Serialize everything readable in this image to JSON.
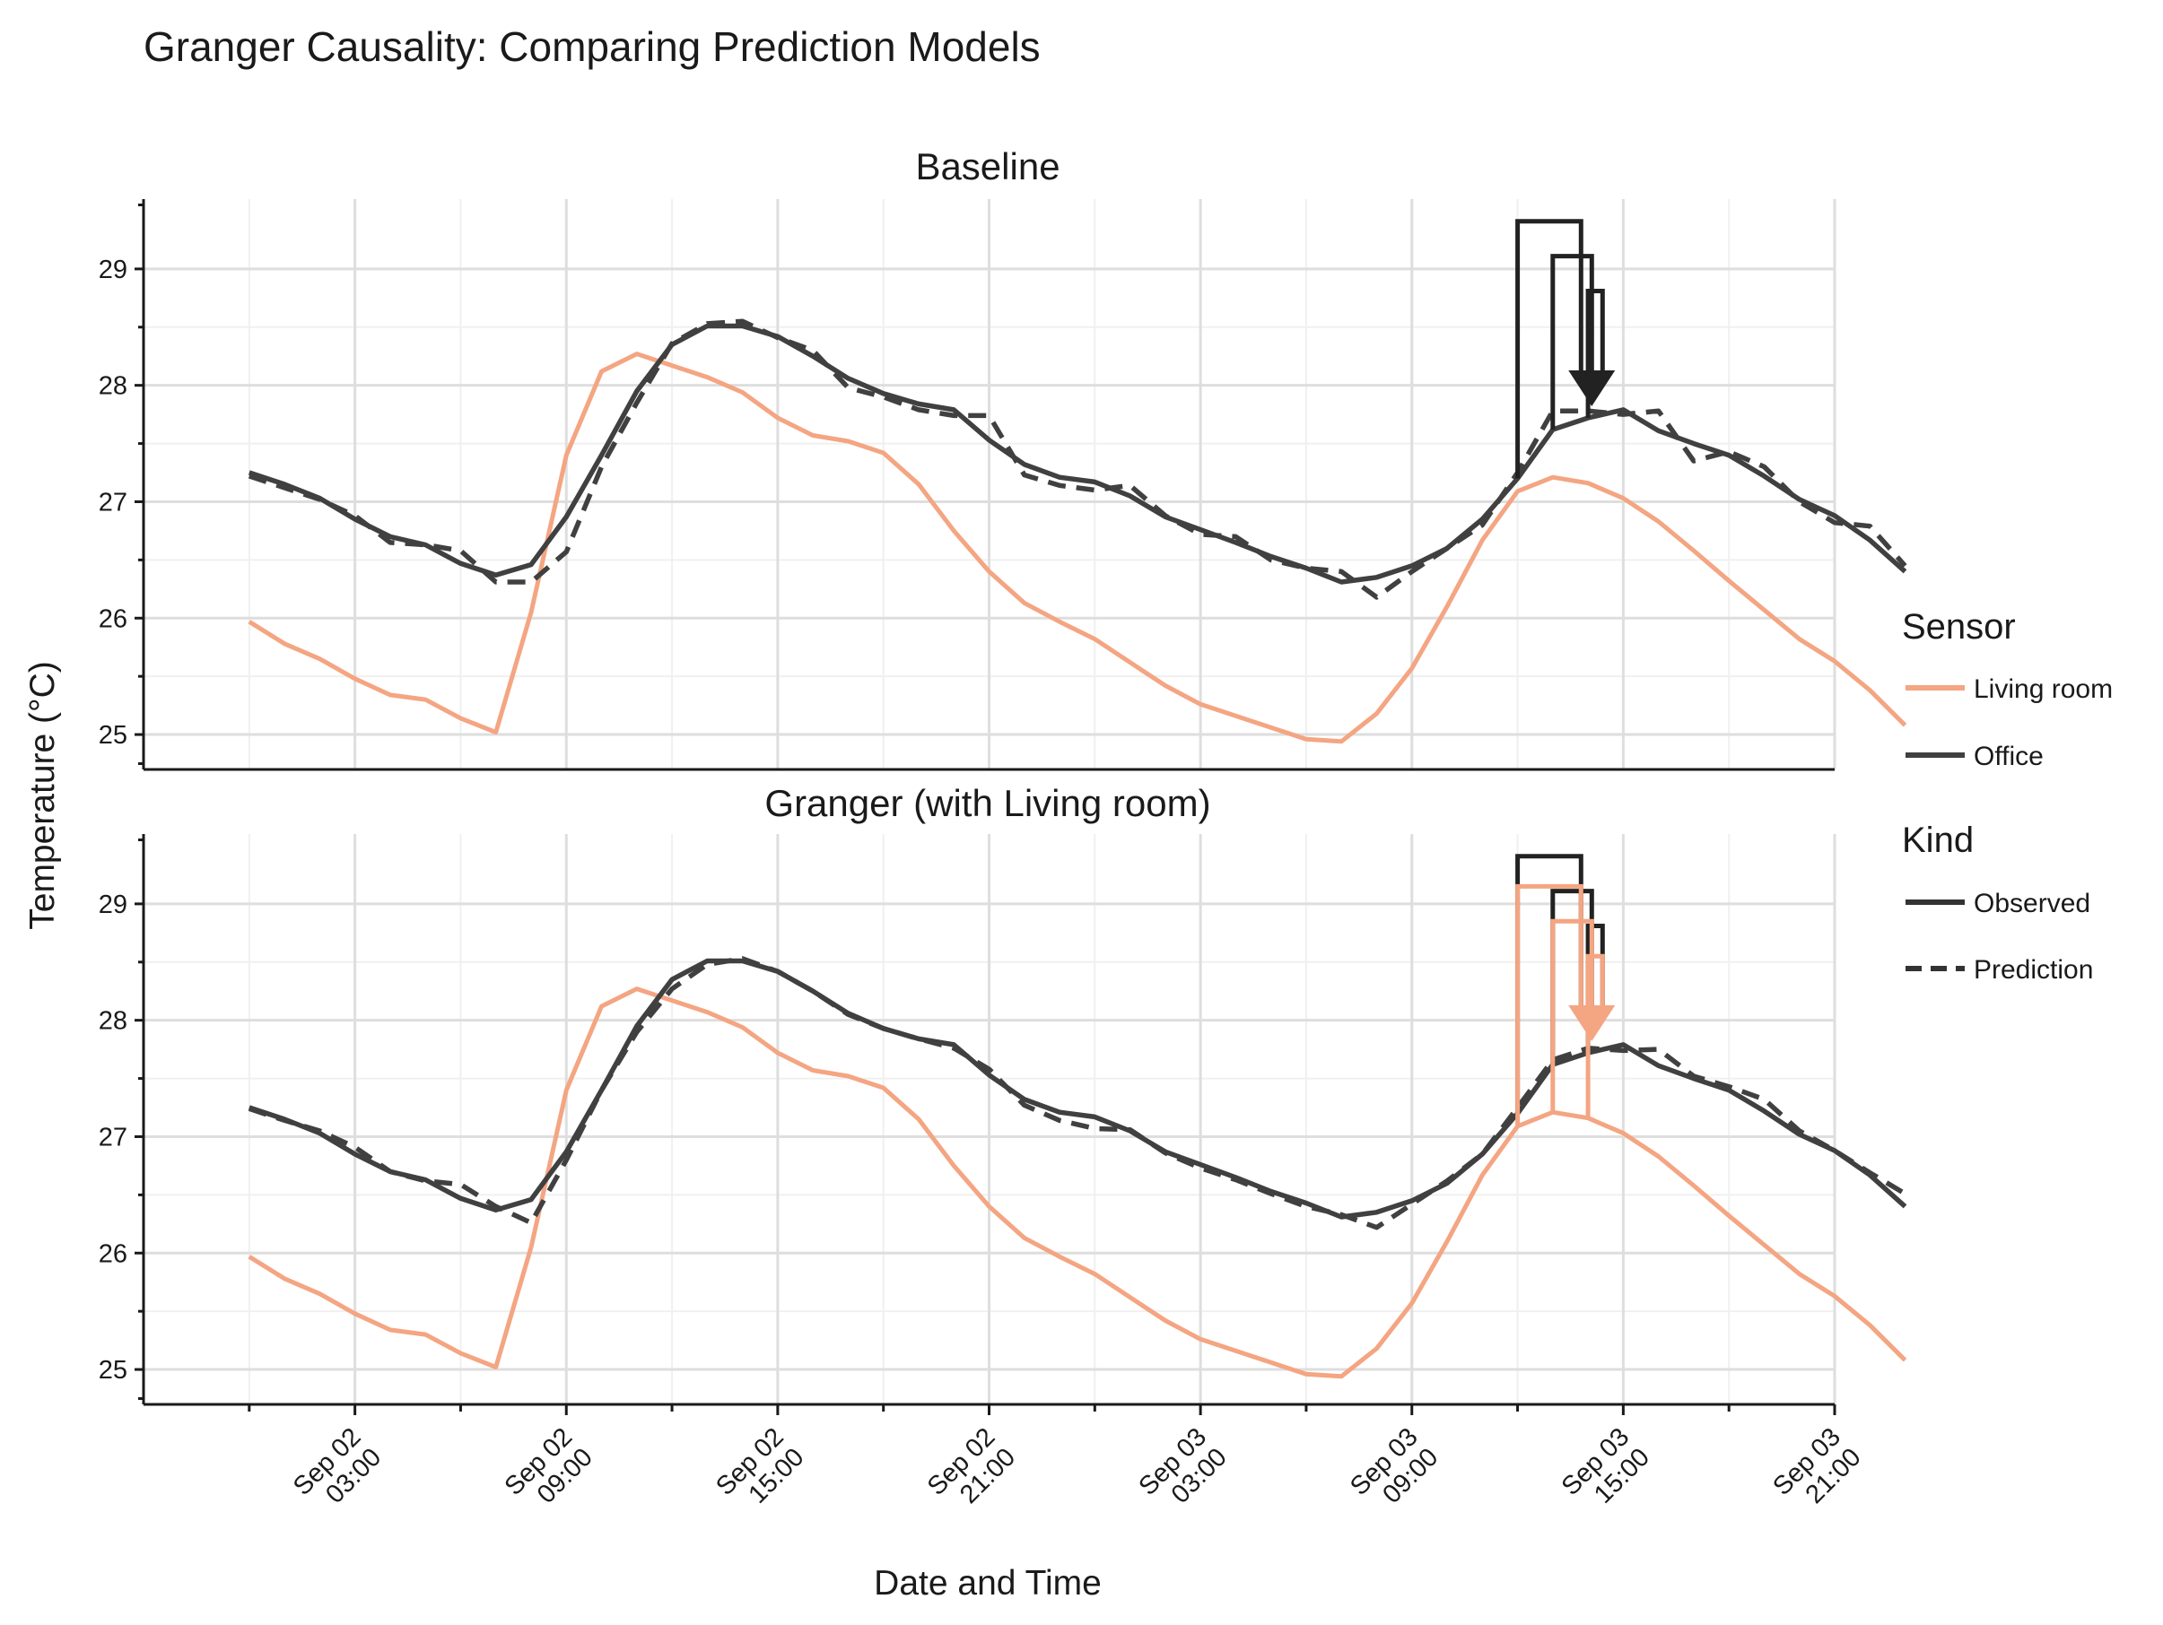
{
  "colors": {
    "living_room": "#f4a582",
    "office": "#404040",
    "observed_legend": "#333333",
    "grid_major": "#dedede",
    "grid_minor": "#f0f0f0",
    "arrow_dark": "#222222",
    "arrow_salmon": "#f4a582"
  },
  "chart_data": {
    "type": "line",
    "title": "Granger Causality: Comparing Prediction Models",
    "xlabel": "Date and Time",
    "ylabel": "Temperature (°C)",
    "x_unit": "hours since Sep 02 00:00",
    "x_range": [
      -3,
      45
    ],
    "x_ticks": [
      {
        "hour": 3,
        "line1": "Sep 02",
        "line2": "03:00"
      },
      {
        "hour": 9,
        "line1": "Sep 02",
        "line2": "09:00"
      },
      {
        "hour": 15,
        "line1": "Sep 02",
        "line2": "15:00"
      },
      {
        "hour": 21,
        "line1": "Sep 02",
        "line2": "21:00"
      },
      {
        "hour": 27,
        "line1": "Sep 03",
        "line2": "03:00"
      },
      {
        "hour": 33,
        "line1": "Sep 03",
        "line2": "09:00"
      },
      {
        "hour": 39,
        "line1": "Sep 03",
        "line2": "15:00"
      },
      {
        "hour": 45,
        "line1": "Sep 03",
        "line2": "21:00"
      }
    ],
    "y_ticks": [
      "25",
      "26",
      "27",
      "28",
      "29"
    ],
    "ylim": [
      24.7,
      29.6
    ],
    "x": [
      0,
      1,
      2,
      3,
      4,
      5,
      6,
      7,
      8,
      9,
      10,
      11,
      12,
      13,
      14,
      15,
      16,
      17,
      18,
      19,
      20,
      21,
      22,
      23,
      24,
      25,
      26,
      27,
      28,
      29,
      30,
      31,
      32,
      33,
      34,
      35,
      36,
      37,
      38,
      39,
      40,
      41,
      42,
      43,
      44,
      45,
      46,
      47
    ],
    "living_room": [
      25.97,
      25.78,
      25.65,
      25.48,
      25.34,
      25.3,
      25.14,
      25.02,
      26.05,
      27.4,
      28.12,
      28.27,
      28.17,
      28.07,
      27.94,
      27.72,
      27.57,
      27.52,
      27.42,
      27.15,
      26.75,
      26.4,
      26.13,
      25.97,
      25.82,
      25.62,
      25.42,
      25.26,
      25.16,
      25.06,
      24.96,
      24.94,
      25.18,
      25.57,
      26.1,
      26.67,
      27.09,
      27.21,
      27.16,
      27.03,
      26.83,
      26.58,
      26.32,
      26.07,
      25.82,
      25.63,
      25.38,
      25.08
    ],
    "office_observed": [
      27.25,
      27.15,
      27.03,
      26.85,
      26.7,
      26.63,
      26.47,
      26.37,
      26.46,
      26.87,
      27.4,
      27.95,
      28.35,
      28.51,
      28.51,
      28.42,
      28.25,
      28.06,
      27.93,
      27.84,
      27.79,
      27.53,
      27.32,
      27.21,
      27.17,
      27.05,
      26.87,
      26.76,
      26.65,
      26.53,
      26.43,
      26.31,
      26.35,
      26.45,
      26.6,
      26.85,
      27.2,
      27.62,
      27.72,
      27.79,
      27.61,
      27.5,
      27.4,
      27.22,
      27.02,
      26.88,
      26.67,
      26.4
    ],
    "series": [
      {
        "panel": "Baseline",
        "office_prediction": [
          27.22,
          27.12,
          27.02,
          26.88,
          26.65,
          26.63,
          26.58,
          26.31,
          26.31,
          26.57,
          27.3,
          27.85,
          28.36,
          28.53,
          28.55,
          28.41,
          28.3,
          27.98,
          27.9,
          27.79,
          27.74,
          27.74,
          27.23,
          27.14,
          27.1,
          27.14,
          26.88,
          26.72,
          26.7,
          26.5,
          26.43,
          26.4,
          26.18,
          26.4,
          26.6,
          26.8,
          27.25,
          27.78,
          27.78,
          27.75,
          27.78,
          27.35,
          27.43,
          27.3,
          27.0,
          26.82,
          26.79,
          26.45
        ],
        "arrow_sources": [],
        "arrow_target": {
          "hour": 37.8,
          "y": 27.82
        }
      },
      {
        "panel": "Granger (with Living room)",
        "office_prediction": [
          27.24,
          27.14,
          27.05,
          26.91,
          26.7,
          26.62,
          26.59,
          26.4,
          26.26,
          26.8,
          27.4,
          27.9,
          28.27,
          28.48,
          28.53,
          28.42,
          28.25,
          28.05,
          27.93,
          27.84,
          27.76,
          27.58,
          27.27,
          27.14,
          27.07,
          27.06,
          26.86,
          26.73,
          26.63,
          26.51,
          26.4,
          26.33,
          26.22,
          26.42,
          26.62,
          26.85,
          27.25,
          27.66,
          27.76,
          27.74,
          27.75,
          27.52,
          27.43,
          27.32,
          27.05,
          26.88,
          26.69,
          26.51
        ],
        "arrow_sources": [
          36,
          37,
          38
        ],
        "arrow_target": {
          "hour": 37.8,
          "y": 27.82
        }
      }
    ],
    "legend": {
      "sensor_title": "Sensor",
      "sensor_items": [
        "Living room",
        "Office"
      ],
      "kind_title": "Kind",
      "kind_items": [
        "Observed",
        "Prediction"
      ],
      "position": "right"
    }
  }
}
